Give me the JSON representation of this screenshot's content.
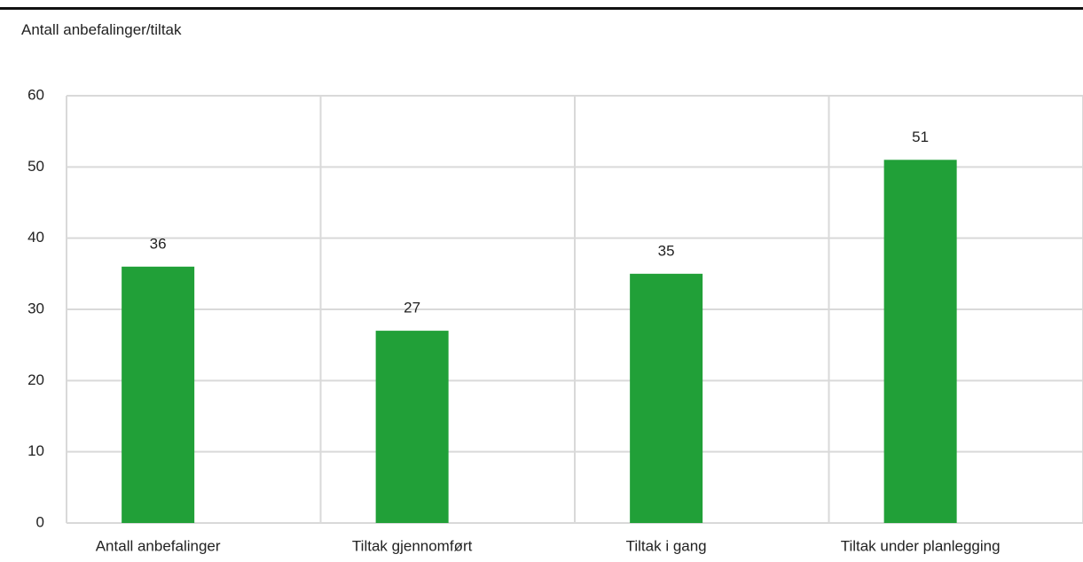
{
  "chart_data": {
    "type": "bar",
    "y_label": "Antall anbefalinger/tiltak",
    "categories": [
      "Antall anbefalinger",
      "Tiltak gjennomført",
      "Tiltak i gang",
      "Tiltak under planlegging"
    ],
    "values": [
      36,
      27,
      35,
      51
    ],
    "color": "#21a038",
    "ylim": [
      0,
      60
    ],
    "yticks": [
      0,
      10,
      20,
      30,
      40,
      50,
      60
    ],
    "grid": true
  }
}
